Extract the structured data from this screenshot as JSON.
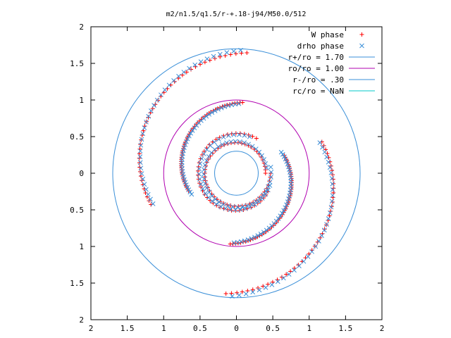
{
  "chart_data": {
    "type": "scatter",
    "title": "m2/n1.5/q1.5/r-+.18-j94/M50.0/512",
    "xlabel": "",
    "ylabel": "",
    "xlim": [
      -2,
      2
    ],
    "ylim": [
      -2,
      2
    ],
    "x_ticks": [
      -2,
      -1.5,
      -1,
      -0.5,
      0,
      0.5,
      1,
      1.5,
      2
    ],
    "y_ticks": [
      -2,
      -1.5,
      -1,
      -0.5,
      0,
      0.5,
      1,
      1.5,
      2
    ],
    "x_tick_labels": [
      "2",
      "1.5",
      "1",
      "0.5",
      "0",
      "0.5",
      "1",
      "1.5",
      "2"
    ],
    "y_tick_labels": [
      "2",
      "1.5",
      "1",
      "0.5",
      "0",
      "0.5",
      "1",
      "1.5",
      "2"
    ],
    "grid": false,
    "legend_position": "top-right",
    "colors": {
      "red": "#ff0000",
      "blue": "#3a8fd8",
      "purple": "#b000b0",
      "cyan": "#00c8c8",
      "axis": "#000000"
    },
    "legend": [
      {
        "label": "W phase",
        "marker": "+",
        "color": "#ff0000"
      },
      {
        "label": "drho phase",
        "marker": "x",
        "color": "#3a8fd8"
      },
      {
        "label": "r+/ro = 1.70",
        "marker": "line",
        "color": "#3a8fd8"
      },
      {
        "label": "ro/ro = 1.00",
        "marker": "line",
        "color": "#b000b0"
      },
      {
        "label": "r-/ro = .30",
        "marker": "line",
        "color": "#3a8fd8"
      },
      {
        "label": "rc/ro = NaN",
        "marker": "line",
        "color": "#00c8c8"
      }
    ],
    "circles": [
      {
        "name": "r+/ro",
        "r": 1.7,
        "color": "#3a8fd8"
      },
      {
        "name": "ro/ro",
        "r": 1.0,
        "color": "#b000b0"
      },
      {
        "name": "r-/ro",
        "r": 0.3,
        "color": "#3a8fd8"
      }
    ],
    "series": [
      {
        "name": "W phase",
        "marker": "+",
        "color": "#ff0000",
        "arcs": [
          {
            "r0": 0.4,
            "r1": 0.47,
            "t0": 0,
            "t1": 360,
            "n": 55
          },
          {
            "r0": 0.55,
            "r1": 0.5,
            "t0": 60,
            "t1": 330,
            "n": 45
          },
          {
            "r0": 0.97,
            "r1": 0.7,
            "t0": 85,
            "t1": 200,
            "n": 55
          },
          {
            "r0": 0.97,
            "r1": 0.7,
            "t0": 265,
            "t1": 380,
            "n": 55
          },
          {
            "r0": 1.65,
            "r1": 1.25,
            "t0": 85,
            "t1": 200,
            "n": 45
          },
          {
            "r0": 1.65,
            "r1": 1.25,
            "t0": 265,
            "t1": 380,
            "n": 45
          }
        ]
      },
      {
        "name": "drho phase",
        "marker": "x",
        "color": "#3a8fd8",
        "arcs": [
          {
            "r0": 0.42,
            "r1": 0.48,
            "t0": 10,
            "t1": 370,
            "n": 45
          },
          {
            "r0": 0.53,
            "r1": 0.49,
            "t0": 70,
            "t1": 340,
            "n": 35
          },
          {
            "r0": 0.95,
            "r1": 0.68,
            "t0": 88,
            "t1": 205,
            "n": 40
          },
          {
            "r0": 0.95,
            "r1": 0.68,
            "t0": 268,
            "t1": 385,
            "n": 40
          },
          {
            "r0": 1.68,
            "r1": 1.22,
            "t0": 88,
            "t1": 200,
            "n": 35
          },
          {
            "r0": 1.68,
            "r1": 1.22,
            "t0": 268,
            "t1": 380,
            "n": 35
          }
        ]
      }
    ]
  }
}
